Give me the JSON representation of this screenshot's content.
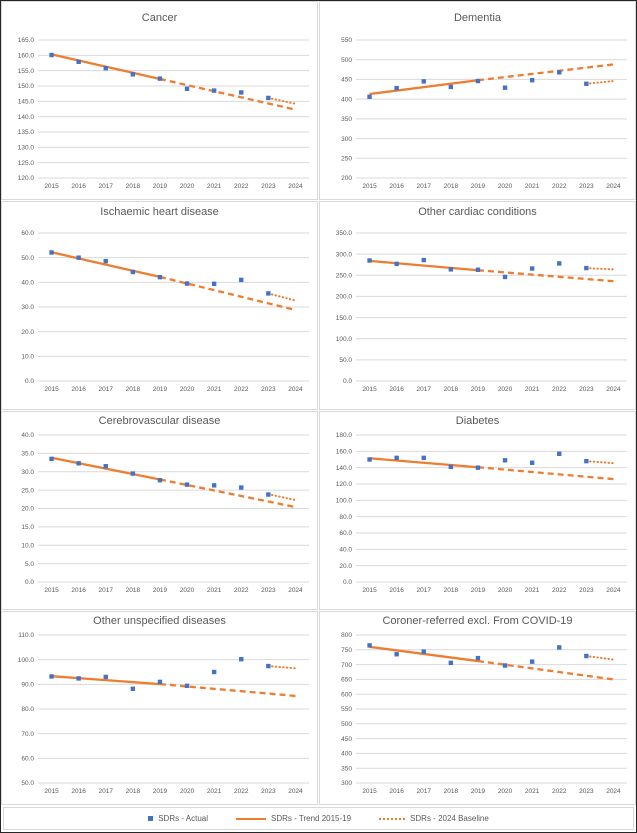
{
  "colors": {
    "actual_marker": "#4472C4",
    "trend_line": "#ED7D31",
    "gridline": "#D9D9D9",
    "axis_text": "#595959",
    "panel_border": "#D9D9D9",
    "outer_border": "#262626"
  },
  "legend": {
    "items": [
      {
        "label": "SDRs - Actual",
        "swatch": "blue-square-marker"
      },
      {
        "label": "SDRs - Trend 2015-19",
        "swatch": "orange-solid-line"
      },
      {
        "label": "SDRs - 2024 Baseline",
        "swatch": "orange-dotted-line"
      }
    ]
  },
  "chart_data": [
    {
      "type": "scatter",
      "title": "Cancer",
      "categories": [
        "2015",
        "2016",
        "2017",
        "2018",
        "2019",
        "2020",
        "2021",
        "2022",
        "2023",
        "2024"
      ],
      "ylim": [
        120,
        165
      ],
      "ystep": 5,
      "grid": true,
      "legend_position": "none",
      "yticks": [
        "165.0",
        "160.0",
        "155.0",
        "150.0",
        "145.0",
        "140.0",
        "135.0",
        "130.0",
        "125.0",
        "120.0"
      ],
      "series": [
        {
          "name": "SDRs - Actual",
          "kind": "markers",
          "x": [
            2015,
            2016,
            2017,
            2018,
            2019,
            2020,
            2021,
            2022,
            2023
          ],
          "y": [
            160.1,
            157.9,
            155.8,
            153.8,
            152.4,
            149.1,
            148.5,
            147.9,
            146.1
          ]
        },
        {
          "name": "SDRs - Trend 2015-19",
          "kind": "trend",
          "solid": {
            "x": [
              2015,
              2019
            ],
            "y": [
              160.3,
              152.3
            ]
          },
          "dashed": {
            "x": [
              2019,
              2024
            ],
            "y": [
              152.3,
              142.3
            ]
          }
        },
        {
          "name": "SDRs - 2024 Baseline",
          "kind": "dotted",
          "x": [
            2023,
            2024
          ],
          "y": [
            146.1,
            144.2
          ]
        }
      ]
    },
    {
      "type": "scatter",
      "title": "Dementia",
      "categories": [
        "2015",
        "2016",
        "2017",
        "2018",
        "2019",
        "2020",
        "2021",
        "2022",
        "2023",
        "2024"
      ],
      "ylim": [
        200,
        550
      ],
      "ystep": 50,
      "grid": true,
      "legend_position": "none",
      "yticks": [
        "550",
        "500",
        "450",
        "400",
        "350",
        "300",
        "250",
        "200"
      ],
      "series": [
        {
          "name": "SDRs - Actual",
          "kind": "markers",
          "x": [
            2015,
            2016,
            2017,
            2018,
            2019,
            2020,
            2021,
            2022,
            2023
          ],
          "y": [
            406,
            428,
            445,
            431,
            446,
            429,
            448,
            468,
            439
          ]
        },
        {
          "name": "SDRs - Trend 2015-19",
          "kind": "trend",
          "solid": {
            "x": [
              2015,
              2019
            ],
            "y": [
              413,
              448
            ]
          },
          "dashed": {
            "x": [
              2019,
              2024
            ],
            "y": [
              448,
              488
            ]
          }
        },
        {
          "name": "SDRs - 2024 Baseline",
          "kind": "dotted",
          "x": [
            2023,
            2024
          ],
          "y": [
            439,
            446
          ]
        }
      ]
    },
    {
      "type": "scatter",
      "title": "Ischaemic heart disease",
      "categories": [
        "2015",
        "2016",
        "2017",
        "2018",
        "2019",
        "2020",
        "2021",
        "2022",
        "2023",
        "2024"
      ],
      "ylim": [
        0,
        60
      ],
      "ystep": 10,
      "grid": true,
      "legend_position": "none",
      "yticks": [
        "60.0",
        "50.0",
        "40.0",
        "30.0",
        "20.0",
        "10.0",
        "0.0"
      ],
      "series": [
        {
          "name": "SDRs - Actual",
          "kind": "markers",
          "x": [
            2015,
            2016,
            2017,
            2018,
            2019,
            2020,
            2021,
            2022,
            2023
          ],
          "y": [
            52.1,
            50.0,
            48.6,
            44.2,
            42.1,
            39.5,
            39.4,
            41.0,
            35.5
          ]
        },
        {
          "name": "SDRs - Trend 2015-19",
          "kind": "trend",
          "solid": {
            "x": [
              2015,
              2019
            ],
            "y": [
              52.2,
              42.2
            ]
          },
          "dashed": {
            "x": [
              2019,
              2024
            ],
            "y": [
              42.2,
              28.8
            ]
          }
        },
        {
          "name": "SDRs - 2024 Baseline",
          "kind": "dotted",
          "x": [
            2023,
            2024
          ],
          "y": [
            35.5,
            32.6
          ]
        }
      ]
    },
    {
      "type": "scatter",
      "title": "Other cardiac conditions",
      "categories": [
        "2015",
        "2016",
        "2017",
        "2018",
        "2019",
        "2020",
        "2021",
        "2022",
        "2023",
        "2024"
      ],
      "ylim": [
        0,
        350
      ],
      "ystep": 50,
      "grid": true,
      "legend_position": "none",
      "yticks": [
        "350.0",
        "300.0",
        "250.0",
        "200.0",
        "150.0",
        "100.0",
        "50.0",
        "0.0"
      ],
      "series": [
        {
          "name": "SDRs - Actual",
          "kind": "markers",
          "x": [
            2015,
            2016,
            2017,
            2018,
            2019,
            2020,
            2021,
            2022,
            2023
          ],
          "y": [
            285,
            277,
            286,
            264,
            263,
            246,
            266,
            278,
            267
          ]
        },
        {
          "name": "SDRs - Trend 2015-19",
          "kind": "trend",
          "solid": {
            "x": [
              2015,
              2019
            ],
            "y": [
              284,
              262
            ]
          },
          "dashed": {
            "x": [
              2019,
              2024
            ],
            "y": [
              262,
              236
            ]
          }
        },
        {
          "name": "SDRs - 2024 Baseline",
          "kind": "dotted",
          "x": [
            2023,
            2024
          ],
          "y": [
            267,
            264
          ]
        }
      ]
    },
    {
      "type": "scatter",
      "title": "Cerebrovascular disease",
      "categories": [
        "2015",
        "2016",
        "2017",
        "2018",
        "2019",
        "2020",
        "2021",
        "2022",
        "2023",
        "2024"
      ],
      "ylim": [
        0,
        40
      ],
      "ystep": 5,
      "grid": true,
      "legend_position": "none",
      "yticks": [
        "40.0",
        "35.0",
        "30.0",
        "25.0",
        "20.0",
        "15.0",
        "10.0",
        "5.0",
        "0.0"
      ],
      "series": [
        {
          "name": "SDRs - Actual",
          "kind": "markers",
          "x": [
            2015,
            2016,
            2017,
            2018,
            2019,
            2020,
            2021,
            2022,
            2023
          ],
          "y": [
            33.5,
            32.3,
            31.5,
            29.5,
            27.7,
            26.5,
            26.3,
            25.7,
            23.8
          ]
        },
        {
          "name": "SDRs - Trend 2015-19",
          "kind": "trend",
          "solid": {
            "x": [
              2015,
              2019
            ],
            "y": [
              33.8,
              27.9
            ]
          },
          "dashed": {
            "x": [
              2019,
              2024
            ],
            "y": [
              27.9,
              20.4
            ]
          }
        },
        {
          "name": "SDRs - 2024 Baseline",
          "kind": "dotted",
          "x": [
            2023,
            2024
          ],
          "y": [
            23.9,
            22.3
          ]
        }
      ]
    },
    {
      "type": "scatter",
      "title": "Diabetes",
      "categories": [
        "2015",
        "2016",
        "2017",
        "2018",
        "2019",
        "2020",
        "2021",
        "2022",
        "2023",
        "2024"
      ],
      "ylim": [
        0,
        180
      ],
      "ystep": 20,
      "grid": true,
      "legend_position": "none",
      "yticks": [
        "180.0",
        "160.0",
        "140.0",
        "120.0",
        "100.0",
        "80.0",
        "60.0",
        "40.0",
        "20.0",
        "0.0"
      ],
      "series": [
        {
          "name": "SDRs - Actual",
          "kind": "markers",
          "x": [
            2015,
            2016,
            2017,
            2018,
            2019,
            2020,
            2021,
            2022,
            2023
          ],
          "y": [
            150,
            152,
            152,
            141,
            140,
            149,
            146,
            157,
            148
          ]
        },
        {
          "name": "SDRs - Trend 2015-19",
          "kind": "trend",
          "solid": {
            "x": [
              2015,
              2019
            ],
            "y": [
              151.5,
              140.5
            ]
          },
          "dashed": {
            "x": [
              2019,
              2024
            ],
            "y": [
              140.5,
              126
            ]
          }
        },
        {
          "name": "SDRs - 2024 Baseline",
          "kind": "dotted",
          "x": [
            2023,
            2024
          ],
          "y": [
            148,
            145.5
          ]
        }
      ]
    },
    {
      "type": "scatter",
      "title": "Other unspecified diseases",
      "categories": [
        "2015",
        "2016",
        "2017",
        "2018",
        "2019",
        "2020",
        "2021",
        "2022",
        "2023",
        "2024"
      ],
      "ylim": [
        50,
        110
      ],
      "ystep": 10,
      "grid": true,
      "legend_position": "none",
      "yticks": [
        "110.0",
        "100.0",
        "90.0",
        "80.0",
        "70.0",
        "60.0",
        "50.0"
      ],
      "series": [
        {
          "name": "SDRs - Actual",
          "kind": "markers",
          "x": [
            2015,
            2016,
            2017,
            2018,
            2019,
            2020,
            2021,
            2022,
            2023
          ],
          "y": [
            93.2,
            92.4,
            93.0,
            88.2,
            91.0,
            89.4,
            95.0,
            100.2,
            97.4
          ]
        },
        {
          "name": "SDRs - Trend 2015-19",
          "kind": "trend",
          "solid": {
            "x": [
              2015,
              2019
            ],
            "y": [
              93.3,
              90.1
            ]
          },
          "dashed": {
            "x": [
              2019,
              2024
            ],
            "y": [
              90.1,
              85.3
            ]
          }
        },
        {
          "name": "SDRs - 2024 Baseline",
          "kind": "dotted",
          "x": [
            2023,
            2024
          ],
          "y": [
            97.4,
            96.5
          ]
        }
      ]
    },
    {
      "type": "scatter",
      "title": "Coroner-referred excl. From COVID-19",
      "categories": [
        "2015",
        "2016",
        "2017",
        "2018",
        "2019",
        "2020",
        "2021",
        "2022",
        "2023",
        "2024"
      ],
      "ylim": [
        300,
        800
      ],
      "ystep": 50,
      "grid": true,
      "legend_position": "none",
      "yticks": [
        "800",
        "750",
        "700",
        "650",
        "600",
        "550",
        "500",
        "450",
        "400",
        "350",
        "300"
      ],
      "series": [
        {
          "name": "SDRs - Actual",
          "kind": "markers",
          "x": [
            2015,
            2016,
            2017,
            2018,
            2019,
            2020,
            2021,
            2022,
            2023
          ],
          "y": [
            765,
            735,
            744,
            706,
            722,
            697,
            710,
            758,
            729
          ]
        },
        {
          "name": "SDRs - Trend 2015-19",
          "kind": "trend",
          "solid": {
            "x": [
              2015,
              2019
            ],
            "y": [
              760,
              712
            ]
          },
          "dashed": {
            "x": [
              2019,
              2024
            ],
            "y": [
              712,
              650
            ]
          }
        },
        {
          "name": "SDRs - 2024 Baseline",
          "kind": "dotted",
          "x": [
            2023,
            2024
          ],
          "y": [
            729,
            717
          ]
        }
      ]
    }
  ]
}
